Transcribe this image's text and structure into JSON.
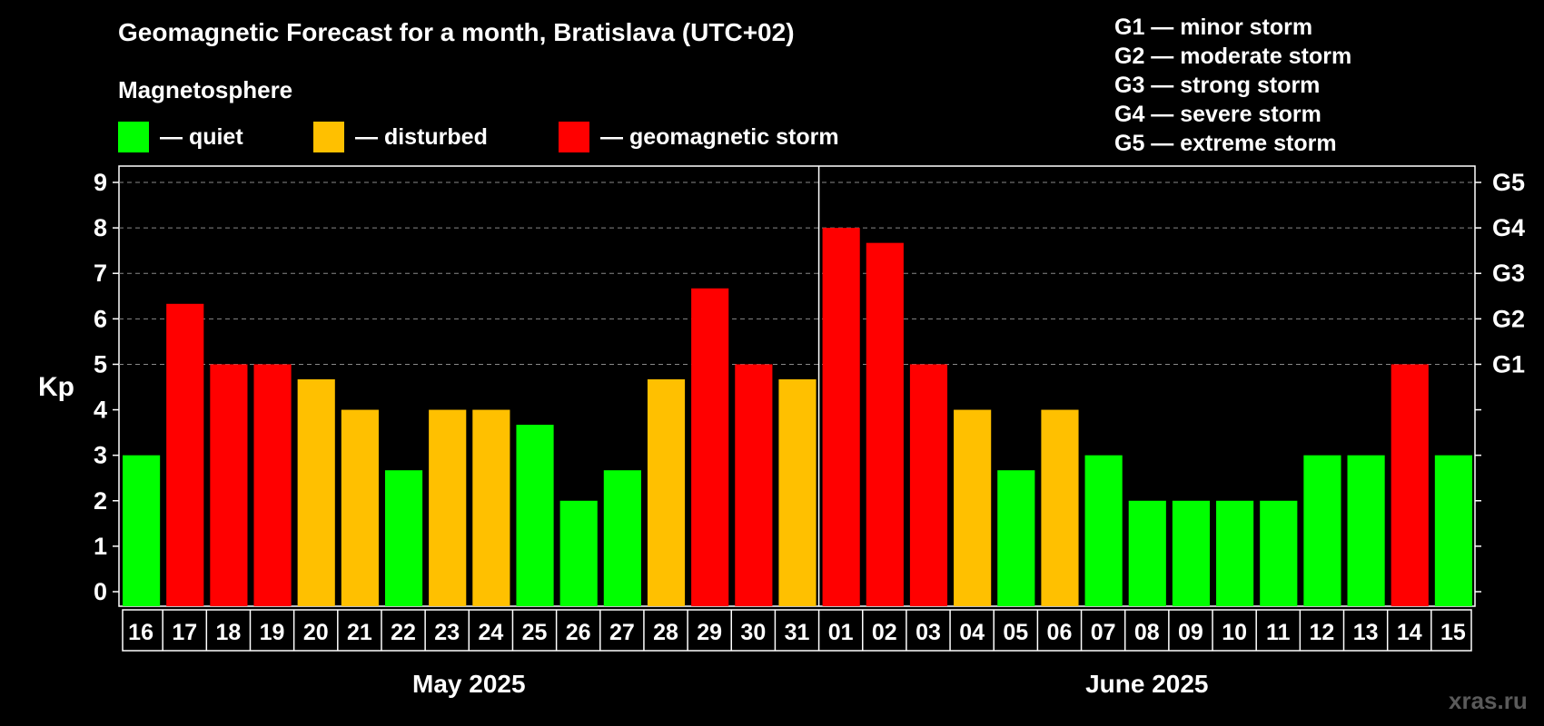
{
  "title": "Geomagnetic Forecast for a month, Bratislava (UTC+02)",
  "subtitle": "Magnetosphere",
  "legend": [
    {
      "label": "— quiet",
      "color": "#00ff00"
    },
    {
      "label": "— disturbed",
      "color": "#ffc000"
    },
    {
      "label": "— geomagnetic storm",
      "color": "#ff0000"
    }
  ],
  "g_scale": [
    "G1 — minor storm",
    "G2 — moderate storm",
    "G3 — strong storm",
    "G4 — severe storm",
    "G5 — extreme storm"
  ],
  "watermark": "xras.ru",
  "chart_data": {
    "type": "bar",
    "title": "Geomagnetic Forecast for a month, Bratislava (UTC+02)",
    "ylabel": "Kp",
    "ylim": [
      0,
      9
    ],
    "yticks": [
      0,
      1,
      2,
      3,
      4,
      5,
      6,
      7,
      8,
      9
    ],
    "right_labels": [
      {
        "kp": 5,
        "label": "G1"
      },
      {
        "kp": 6,
        "label": "G2"
      },
      {
        "kp": 7,
        "label": "G3"
      },
      {
        "kp": 8,
        "label": "G4"
      },
      {
        "kp": 9,
        "label": "G5"
      }
    ],
    "months": [
      {
        "label": "May 2025",
        "start": 0,
        "end": 15
      },
      {
        "label": "June 2025",
        "start": 16,
        "end": 30
      }
    ],
    "categories": [
      "16",
      "17",
      "18",
      "19",
      "20",
      "21",
      "22",
      "23",
      "24",
      "25",
      "26",
      "27",
      "28",
      "29",
      "30",
      "31",
      "01",
      "02",
      "03",
      "04",
      "05",
      "06",
      "07",
      "08",
      "09",
      "10",
      "11",
      "12",
      "13",
      "14",
      "15"
    ],
    "values": [
      3,
      6.33,
      5,
      5,
      4.67,
      4,
      2.67,
      4,
      4,
      3.67,
      2,
      2.67,
      4.67,
      6.67,
      5,
      4.67,
      8,
      7.67,
      5,
      4,
      2.67,
      4,
      3,
      2,
      2,
      2,
      2,
      3,
      3,
      5,
      3
    ],
    "levels": [
      "quiet",
      "storm",
      "storm",
      "storm",
      "disturbed",
      "disturbed",
      "quiet",
      "disturbed",
      "disturbed",
      "quiet",
      "quiet",
      "quiet",
      "disturbed",
      "storm",
      "storm",
      "disturbed",
      "storm",
      "storm",
      "storm",
      "disturbed",
      "quiet",
      "disturbed",
      "quiet",
      "quiet",
      "quiet",
      "quiet",
      "quiet",
      "quiet",
      "quiet",
      "storm",
      "quiet"
    ],
    "level_colors": {
      "quiet": "#00ff00",
      "disturbed": "#ffc000",
      "storm": "#ff0000"
    }
  }
}
